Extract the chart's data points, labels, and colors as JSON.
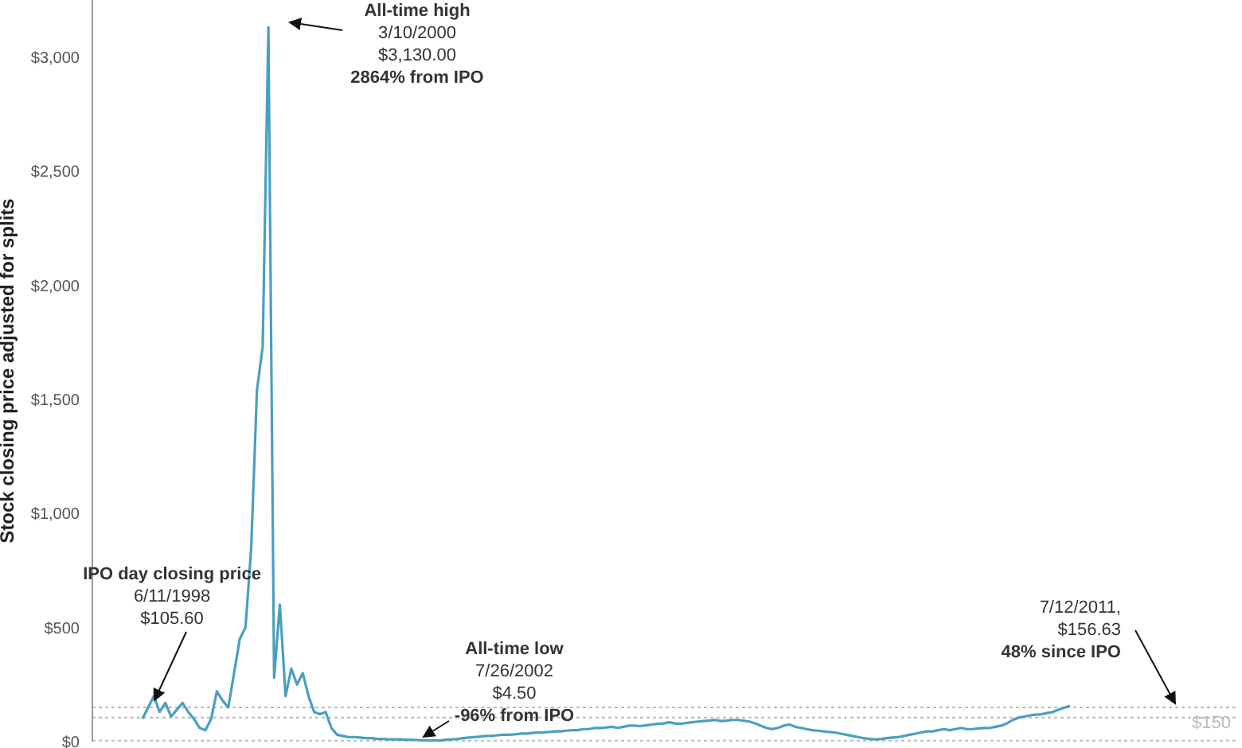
{
  "chart_data": {
    "type": "line",
    "ylabel": "Stock closing price adjusted for splits",
    "categories": [
      null,
      null,
      null,
      null,
      null,
      null,
      null,
      null,
      null,
      null,
      null,
      null,
      null,
      null,
      null,
      null,
      null,
      null,
      null,
      null,
      null,
      null,
      null,
      null,
      null,
      null,
      null,
      null,
      null,
      null,
      null,
      null,
      null,
      null,
      null,
      null,
      null,
      null,
      null,
      null,
      null,
      null,
      null,
      null,
      null,
      null,
      null,
      null,
      null,
      null,
      null,
      null,
      null,
      null,
      null,
      null,
      null,
      null,
      null,
      null,
      null,
      null,
      null,
      null,
      null,
      null,
      null,
      null,
      null,
      null,
      null,
      null,
      null,
      null,
      null,
      null,
      null,
      null,
      null,
      null,
      null,
      null,
      null,
      null,
      null,
      null,
      null,
      null,
      null,
      null,
      null,
      null,
      null,
      null,
      null,
      null,
      null,
      null,
      null,
      null,
      null,
      null,
      null,
      null,
      null,
      null,
      null,
      null,
      null,
      null,
      null,
      null,
      null,
      null,
      null,
      null,
      null,
      null,
      null,
      null,
      null,
      null,
      null,
      null,
      null,
      null,
      null,
      null,
      null,
      null,
      null,
      null,
      null,
      null,
      null,
      null,
      null,
      null,
      null,
      null,
      null,
      null,
      null,
      null,
      null,
      null,
      null,
      null,
      null,
      null,
      null,
      null,
      null,
      null,
      null,
      null,
      null,
      null,
      null,
      null,
      null,
      null,
      null
    ],
    "series": [
      {
        "color": "#4a9fc0",
        "values": [
          100,
          150,
          200,
          130,
          170,
          110,
          140,
          170,
          130,
          100,
          60,
          50,
          100,
          220,
          180,
          150,
          300,
          450,
          500,
          850,
          1540,
          1730,
          3130,
          280,
          600,
          200,
          320,
          250,
          300,
          200,
          130,
          120,
          130,
          60,
          30,
          25,
          20,
          20,
          18,
          15,
          15,
          12,
          12,
          10,
          10,
          10,
          8,
          8,
          7,
          6,
          6,
          5,
          5,
          8,
          10,
          12,
          15,
          18,
          20,
          22,
          25,
          25,
          28,
          30,
          30,
          32,
          35,
          35,
          38,
          40,
          40,
          42,
          45,
          45,
          48,
          50,
          50,
          55,
          55,
          60,
          60,
          62,
          65,
          60,
          65,
          70,
          70,
          68,
          72,
          75,
          78,
          80,
          85,
          80,
          78,
          82,
          85,
          88,
          90,
          92,
          95,
          90,
          92,
          95,
          95,
          92,
          88,
          80,
          70,
          60,
          55,
          60,
          70,
          75,
          65,
          60,
          55,
          50,
          48,
          45,
          42,
          40,
          35,
          30,
          25,
          20,
          15,
          12,
          10,
          12,
          15,
          18,
          20,
          25,
          30,
          35,
          40,
          45,
          45,
          50,
          55,
          50,
          55,
          60,
          55,
          55,
          58,
          60,
          60,
          65,
          70,
          80,
          95,
          105,
          110,
          115,
          118,
          120,
          125,
          130,
          140,
          148,
          157
        ]
      }
    ],
    "ylim": [
      0,
      3250
    ],
    "yticks": [
      {
        "value": 0,
        "label": "$0"
      },
      {
        "value": 500,
        "label": "$500"
      },
      {
        "value": 1000,
        "label": "$1,000"
      },
      {
        "value": 1500,
        "label": "$1,500"
      },
      {
        "value": 2000,
        "label": "$2,000"
      },
      {
        "value": 2500,
        "label": "$2,500"
      },
      {
        "value": 3000,
        "label": "$3,000"
      }
    ],
    "ref_lines": [
      {
        "axis": "y",
        "value": 150,
        "label": "$150",
        "color": "#bbbbbb",
        "line_style": "dotted"
      },
      {
        "axis": "y",
        "value": 105.6,
        "label": null,
        "color": "#bbbbbb",
        "line_style": "dotted"
      },
      {
        "axis": "y",
        "value": 4.5,
        "label": null,
        "color": "#bbbbbb",
        "line_style": "dotted"
      }
    ],
    "annotations": [
      "All-time high\n3/10/2000\n$3,130.00\n2864% from IPO",
      "IPO day closing price\n6/11/1998\n$105.60",
      "All-time low\n7/26/2002\n$4.50\n-96% from IPO",
      "7/12/2011,\n$156.63\n48% since IPO"
    ],
    "marker": "none",
    "line_style": "solid"
  }
}
